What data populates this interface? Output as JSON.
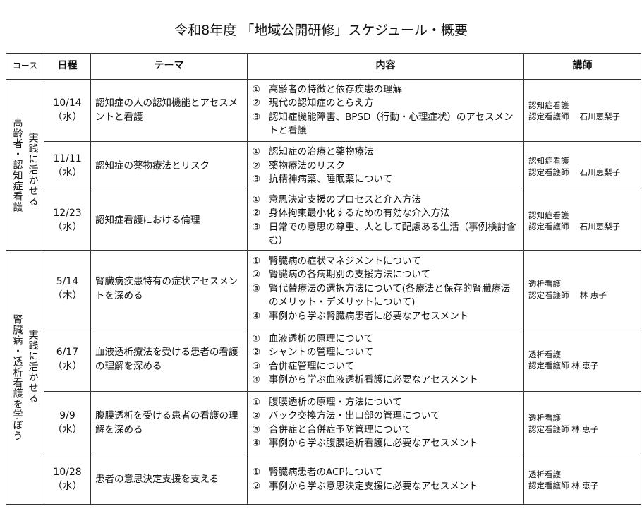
{
  "title": "令和8年度 「地域公開研修」スケジュール・概要",
  "headers": {
    "course": "コース",
    "date": "日程",
    "theme": "テーマ",
    "content": "内容",
    "teacher": "講師"
  },
  "courses": [
    {
      "line1": "実践に活かせる",
      "line2": "高齢者・認知症看護",
      "sessions": [
        {
          "date": "10/14",
          "day": "（水）",
          "theme": "認知症の人の認知機能とアセスメントと看護",
          "items": [
            {
              "n": "①",
              "t": "高齢者の特徴と依存疾患の理解"
            },
            {
              "n": "②",
              "t": "現代の認知症のとらえ方"
            },
            {
              "n": "③",
              "t": "認知症機能障害、BPSD（行動・心理症状）のアセスメントと看護"
            }
          ],
          "teacher1": "認知症看護",
          "teacher2": "認定看護師　 石川恵梨子"
        },
        {
          "date": "11/11",
          "day": "（水）",
          "theme": "認知症の薬物療法とリスク",
          "items": [
            {
              "n": "①",
              "t": "認知症の治療と薬物療法"
            },
            {
              "n": "②",
              "t": "薬物療法のリスク"
            },
            {
              "n": "③",
              "t": "抗精神病薬、睡眠薬について"
            }
          ],
          "teacher1": "認知症看護",
          "teacher2": "認定看護師　 石川恵梨子"
        },
        {
          "date": "12/23",
          "day": "（水）",
          "theme": "認知症看護における倫理",
          "items": [
            {
              "n": "①",
              "t": "意思決定支援のプロセスと介入方法"
            },
            {
              "n": "②",
              "t": "身体拘束最小化するための有効な介入方法"
            },
            {
              "n": "③",
              "t": "日常での意思の尊重、人として配慮ある生活（事例検討含む）"
            }
          ],
          "teacher1": "認知症看護",
          "teacher2": "認定看護師　 石川恵梨子"
        }
      ]
    },
    {
      "line1": "実践に活かせる",
      "line2": "腎臓病・透析看護を学ぼう",
      "sessions": [
        {
          "date": "5/14",
          "day": "（木）",
          "theme": "腎臓病疾患特有の症状アセスメントを深める",
          "items": [
            {
              "n": "①",
              "t": "腎臓病の症状マネジメントについて"
            },
            {
              "n": "②",
              "t": "腎臓病の各病期別の支援方法について"
            },
            {
              "n": "③",
              "t": "腎代替療法の選択方法について(各療法と保存的腎臓療法のメリット・デメリットについて)"
            },
            {
              "n": "④",
              "t": "事例から学ぶ腎臓病患者に必要なアセスメント"
            }
          ],
          "teacher1": "透析看護",
          "teacher2": "認定看護師　 林 恵子"
        },
        {
          "date": "6/17",
          "day": "（水）",
          "theme": "血液透析療法を受ける患者の看護の理解を深める",
          "items": [
            {
              "n": "①",
              "t": "血液透析の原理について"
            },
            {
              "n": "②",
              "t": "シャントの管理について"
            },
            {
              "n": "③",
              "t": "合併症管理について"
            },
            {
              "n": "④",
              "t": "事例から学ぶ血液透析看護に必要なアセスメント"
            }
          ],
          "teacher1": "透析看護",
          "teacher2": "認定看護師 林 恵子"
        },
        {
          "date": "9/9",
          "day": "（水）",
          "theme": "腹膜透析を受ける患者の看護の理解を深める",
          "items": [
            {
              "n": "①",
              "t": "腹膜透析の原理・方法について"
            },
            {
              "n": "②",
              "t": "バック交換方法・出口部の管理について"
            },
            {
              "n": "③",
              "t": "合併症と合併症予防管理について"
            },
            {
              "n": "④",
              "t": "事例から学ぶ腹膜透析看護に必要なアセスメント"
            }
          ],
          "teacher1": "透析看護",
          "teacher2": "認定看護師 林 恵子"
        },
        {
          "date": "10/28",
          "day": "（水）",
          "theme": "患者の意思決定支援を支える",
          "items": [
            {
              "n": "①",
              "t": "腎臓病患者のACPについて"
            },
            {
              "n": "②",
              "t": "事例から学ぶ意思決定支援に必要なアセスメント"
            }
          ],
          "teacher1": "透析看護",
          "teacher2": "認定看護師 林 恵子"
        }
      ]
    }
  ]
}
